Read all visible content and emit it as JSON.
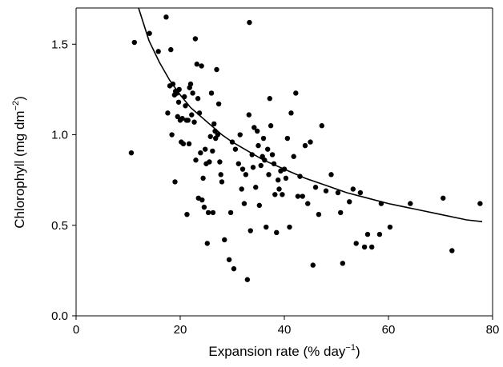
{
  "chart_data": {
    "type": "scatter",
    "xlabel": "Expansion rate (% day",
    "xlabel_sup": "−1",
    "xlabel_close": ")",
    "ylabel": "Chlorophyll (mg dm",
    "ylabel_sup": "−2",
    "ylabel_close": ")",
    "xlim": [
      0,
      80
    ],
    "ylim": [
      0,
      1.7
    ],
    "xticks": [
      0,
      20,
      40,
      60,
      80
    ],
    "xtick_labels": [
      "0",
      "20",
      "40",
      "60",
      "80"
    ],
    "yticks": [
      0.0,
      0.5,
      1.0,
      1.5
    ],
    "ytick_labels": [
      "0.0",
      "0.5",
      "1.0",
      "1.5"
    ],
    "grid": false,
    "legend": "none",
    "point_color": "#000000",
    "fit_curve": {
      "x": [
        12,
        14,
        16,
        18,
        20,
        22,
        24,
        26,
        28,
        30,
        33,
        36,
        40,
        44,
        48,
        52,
        56,
        60,
        65,
        70,
        75,
        78
      ],
      "y": [
        1.7,
        1.52,
        1.4,
        1.3,
        1.22,
        1.15,
        1.1,
        1.05,
        1.0,
        0.96,
        0.91,
        0.86,
        0.81,
        0.76,
        0.72,
        0.68,
        0.65,
        0.62,
        0.59,
        0.56,
        0.53,
        0.52
      ]
    },
    "points": [
      {
        "x": 10.6,
        "y": 0.9
      },
      {
        "x": 11.2,
        "y": 1.51
      },
      {
        "x": 14.1,
        "y": 1.56
      },
      {
        "x": 15.8,
        "y": 1.46
      },
      {
        "x": 17.3,
        "y": 1.65
      },
      {
        "x": 17.6,
        "y": 1.12
      },
      {
        "x": 18.0,
        "y": 1.27
      },
      {
        "x": 18.2,
        "y": 1.47
      },
      {
        "x": 18.4,
        "y": 1.0
      },
      {
        "x": 18.6,
        "y": 1.28
      },
      {
        "x": 18.9,
        "y": 1.22
      },
      {
        "x": 19.0,
        "y": 0.74
      },
      {
        "x": 19.1,
        "y": 1.24
      },
      {
        "x": 19.4,
        "y": 1.23
      },
      {
        "x": 19.5,
        "y": 1.1
      },
      {
        "x": 19.7,
        "y": 1.18
      },
      {
        "x": 19.8,
        "y": 1.25
      },
      {
        "x": 20.0,
        "y": 1.08
      },
      {
        "x": 20.2,
        "y": 0.96
      },
      {
        "x": 20.4,
        "y": 1.09
      },
      {
        "x": 20.6,
        "y": 0.95
      },
      {
        "x": 20.8,
        "y": 1.21
      },
      {
        "x": 21.0,
        "y": 1.16
      },
      {
        "x": 21.2,
        "y": 1.08
      },
      {
        "x": 21.3,
        "y": 0.56
      },
      {
        "x": 21.5,
        "y": 1.08
      },
      {
        "x": 21.7,
        "y": 0.95
      },
      {
        "x": 21.8,
        "y": 1.26
      },
      {
        "x": 22.0,
        "y": 1.28
      },
      {
        "x": 22.2,
        "y": 1.11
      },
      {
        "x": 22.4,
        "y": 1.23
      },
      {
        "x": 22.7,
        "y": 1.07
      },
      {
        "x": 22.9,
        "y": 1.53
      },
      {
        "x": 23.0,
        "y": 0.86
      },
      {
        "x": 23.2,
        "y": 1.39
      },
      {
        "x": 23.4,
        "y": 1.2
      },
      {
        "x": 23.5,
        "y": 0.65
      },
      {
        "x": 23.7,
        "y": 1.12
      },
      {
        "x": 23.9,
        "y": 0.9
      },
      {
        "x": 24.1,
        "y": 1.38
      },
      {
        "x": 24.2,
        "y": 0.64
      },
      {
        "x": 24.4,
        "y": 0.76
      },
      {
        "x": 24.6,
        "y": 0.6
      },
      {
        "x": 24.8,
        "y": 0.92
      },
      {
        "x": 25.0,
        "y": 0.84
      },
      {
        "x": 25.2,
        "y": 0.4
      },
      {
        "x": 25.4,
        "y": 0.57
      },
      {
        "x": 25.6,
        "y": 0.85
      },
      {
        "x": 25.8,
        "y": 0.99
      },
      {
        "x": 26.0,
        "y": 1.23
      },
      {
        "x": 26.2,
        "y": 0.91
      },
      {
        "x": 26.3,
        "y": 0.57
      },
      {
        "x": 26.5,
        "y": 1.06
      },
      {
        "x": 26.7,
        "y": 1.02
      },
      {
        "x": 26.8,
        "y": 0.98
      },
      {
        "x": 27.0,
        "y": 1.36
      },
      {
        "x": 27.2,
        "y": 1.0
      },
      {
        "x": 27.4,
        "y": 1.17
      },
      {
        "x": 27.6,
        "y": 0.85
      },
      {
        "x": 27.8,
        "y": 0.78
      },
      {
        "x": 28.0,
        "y": 0.74
      },
      {
        "x": 28.5,
        "y": 0.42
      },
      {
        "x": 29.4,
        "y": 0.31
      },
      {
        "x": 29.7,
        "y": 0.57
      },
      {
        "x": 30.0,
        "y": 0.96
      },
      {
        "x": 30.3,
        "y": 0.26
      },
      {
        "x": 30.6,
        "y": 0.92
      },
      {
        "x": 31.2,
        "y": 0.84
      },
      {
        "x": 31.5,
        "y": 1.0
      },
      {
        "x": 31.8,
        "y": 0.7
      },
      {
        "x": 32.0,
        "y": 0.81
      },
      {
        "x": 32.3,
        "y": 0.62
      },
      {
        "x": 32.6,
        "y": 0.78
      },
      {
        "x": 32.9,
        "y": 0.2
      },
      {
        "x": 33.2,
        "y": 1.11
      },
      {
        "x": 33.3,
        "y": 1.62
      },
      {
        "x": 33.5,
        "y": 0.47
      },
      {
        "x": 33.8,
        "y": 0.89
      },
      {
        "x": 34.0,
        "y": 0.82
      },
      {
        "x": 34.2,
        "y": 1.04
      },
      {
        "x": 34.5,
        "y": 0.71
      },
      {
        "x": 34.8,
        "y": 1.02
      },
      {
        "x": 35.0,
        "y": 0.94
      },
      {
        "x": 35.2,
        "y": 0.61
      },
      {
        "x": 35.5,
        "y": 0.83
      },
      {
        "x": 35.8,
        "y": 0.88
      },
      {
        "x": 36.0,
        "y": 0.98
      },
      {
        "x": 36.2,
        "y": 0.86
      },
      {
        "x": 36.5,
        "y": 0.49
      },
      {
        "x": 36.8,
        "y": 0.92
      },
      {
        "x": 37.0,
        "y": 0.78
      },
      {
        "x": 37.2,
        "y": 1.2
      },
      {
        "x": 37.4,
        "y": 1.05
      },
      {
        "x": 37.7,
        "y": 0.89
      },
      {
        "x": 38.0,
        "y": 0.84
      },
      {
        "x": 38.2,
        "y": 0.67
      },
      {
        "x": 38.5,
        "y": 0.46
      },
      {
        "x": 38.8,
        "y": 0.75
      },
      {
        "x": 39.0,
        "y": 0.7
      },
      {
        "x": 39.3,
        "y": 0.8
      },
      {
        "x": 39.6,
        "y": 0.67
      },
      {
        "x": 40.0,
        "y": 0.81
      },
      {
        "x": 40.3,
        "y": 0.76
      },
      {
        "x": 40.6,
        "y": 0.98
      },
      {
        "x": 41.0,
        "y": 0.49
      },
      {
        "x": 41.3,
        "y": 1.12
      },
      {
        "x": 41.8,
        "y": 0.88
      },
      {
        "x": 42.2,
        "y": 1.23
      },
      {
        "x": 42.6,
        "y": 0.66
      },
      {
        "x": 43.0,
        "y": 0.77
      },
      {
        "x": 43.5,
        "y": 0.66
      },
      {
        "x": 44.0,
        "y": 0.94
      },
      {
        "x": 44.5,
        "y": 0.62
      },
      {
        "x": 45.0,
        "y": 0.96
      },
      {
        "x": 45.5,
        "y": 0.28
      },
      {
        "x": 46.0,
        "y": 0.71
      },
      {
        "x": 46.6,
        "y": 0.56
      },
      {
        "x": 47.2,
        "y": 1.05
      },
      {
        "x": 48.0,
        "y": 0.69
      },
      {
        "x": 49.0,
        "y": 0.78
      },
      {
        "x": 50.3,
        "y": 0.68
      },
      {
        "x": 50.8,
        "y": 0.57
      },
      {
        "x": 51.2,
        "y": 0.29
      },
      {
        "x": 52.5,
        "y": 0.63
      },
      {
        "x": 53.2,
        "y": 0.7
      },
      {
        "x": 53.8,
        "y": 0.4
      },
      {
        "x": 54.6,
        "y": 0.68
      },
      {
        "x": 55.4,
        "y": 0.38
      },
      {
        "x": 56.0,
        "y": 0.45
      },
      {
        "x": 56.8,
        "y": 0.38
      },
      {
        "x": 58.3,
        "y": 0.45
      },
      {
        "x": 58.6,
        "y": 0.62
      },
      {
        "x": 60.3,
        "y": 0.49
      },
      {
        "x": 64.2,
        "y": 0.62
      },
      {
        "x": 70.5,
        "y": 0.65
      },
      {
        "x": 72.2,
        "y": 0.36
      },
      {
        "x": 77.6,
        "y": 0.62
      }
    ]
  }
}
